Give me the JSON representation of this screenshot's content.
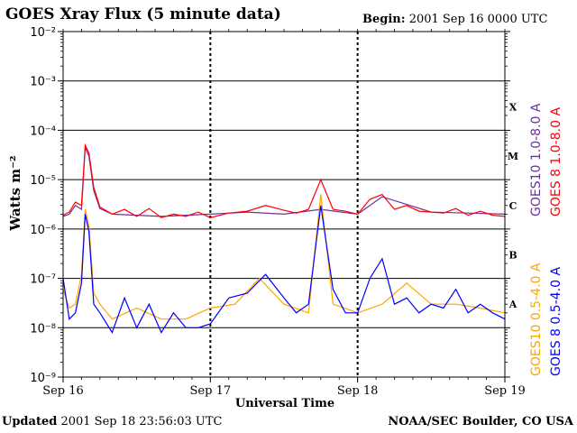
{
  "header": {
    "title": "GOES Xray Flux (5 minute data)",
    "begin_label": "Begin:",
    "begin_value": "2001 Sep 16 0000 UTC"
  },
  "footer": {
    "updated_label": "Updated",
    "updated_value": "2001 Sep 18 23:56:03 UTC",
    "org": "NOAA/SEC Boulder, CO USA"
  },
  "chart_data": {
    "type": "line",
    "title": "GOES Xray Flux (5 minute data)",
    "xlabel": "Universal Time",
    "ylabel": "Watts m⁻²",
    "x_unit": "hours since 2001 Sep 16 0000 UTC",
    "xlim": [
      0,
      72
    ],
    "y_scale": "log",
    "ylim": [
      1e-09,
      0.01
    ],
    "grid": true,
    "x_tick_labels": [
      "Sep 16",
      "Sep 17",
      "Sep 18",
      "Sep 19"
    ],
    "x_tick_values": [
      0,
      24,
      48,
      72
    ],
    "y_tick_labels": [
      "10⁻²",
      "10⁻³",
      "10⁻⁴",
      "10⁻⁵",
      "10⁻⁶",
      "10⁻⁷",
      "10⁻⁸",
      "10⁻⁹"
    ],
    "y_tick_values": [
      0.01,
      0.001,
      0.0001,
      1e-05,
      1e-06,
      1e-07,
      1e-08,
      1e-09
    ],
    "flare_classes": [
      {
        "label": "X",
        "value": 0.0003
      },
      {
        "label": "M",
        "value": 3e-05
      },
      {
        "label": "C",
        "value": 3e-06
      },
      {
        "label": "B",
        "value": 3e-07
      },
      {
        "label": "A",
        "value": 3e-08
      }
    ],
    "legend_position": "right",
    "series": [
      {
        "name": "GOES10 1.0-8.0 A",
        "color": "#7030a0",
        "x": [
          0,
          1,
          2,
          3,
          3.6,
          4.2,
          5,
          6,
          8,
          12,
          16,
          20,
          24,
          30,
          36,
          42,
          48,
          52,
          60,
          66,
          72
        ],
        "values": [
          1.8e-06,
          2e-06,
          3e-06,
          2.5e-06,
          4.5e-05,
          3e-05,
          6e-06,
          2.6e-06,
          2e-06,
          1.9e-06,
          1.8e-06,
          1.9e-06,
          2e-06,
          2.2e-06,
          2e-06,
          2.5e-06,
          2e-06,
          4.5e-06,
          2.2e-06,
          2.1e-06,
          2e-06
        ]
      },
      {
        "name": "GOES 8 1.0-8.0 A",
        "color": "#ff0000",
        "x": [
          0,
          1,
          2,
          3,
          3.6,
          4.2,
          5,
          6,
          8,
          10,
          12,
          14,
          16,
          18,
          20,
          22,
          24,
          27,
          30,
          33,
          36,
          38,
          40,
          42,
          44,
          46,
          48,
          50,
          52,
          54,
          56,
          58,
          60,
          62,
          64,
          66,
          68,
          70,
          72
        ],
        "values": [
          1.9e-06,
          2.2e-06,
          3.5e-06,
          3e-06,
          5e-05,
          3.5e-05,
          7e-06,
          2.8e-06,
          2e-06,
          2.5e-06,
          1.8e-06,
          2.6e-06,
          1.7e-06,
          2e-06,
          1.8e-06,
          2.2e-06,
          1.7e-06,
          2.1e-06,
          2.3e-06,
          3e-06,
          2.4e-06,
          2.1e-06,
          2.5e-06,
          1e-05,
          2.5e-06,
          2.3e-06,
          2e-06,
          4e-06,
          5e-06,
          2.5e-06,
          3e-06,
          2.3e-06,
          2.2e-06,
          2.1e-06,
          2.6e-06,
          1.9e-06,
          2.3e-06,
          1.9e-06,
          1.8e-06
        ]
      },
      {
        "name": "GOES10 0.5-4.0 A",
        "color": "#ffa500",
        "x": [
          0,
          1,
          2,
          3,
          3.6,
          4.2,
          5,
          6,
          8,
          12,
          16,
          20,
          24,
          28,
          32,
          36,
          40,
          42,
          44,
          48,
          52,
          56,
          60,
          64,
          68,
          72
        ],
        "values": [
          6e-08,
          2.5e-08,
          3e-08,
          1.2e-07,
          2.5e-06,
          1.2e-06,
          5e-08,
          3e-08,
          1.5e-08,
          2.5e-08,
          1.5e-08,
          1.5e-08,
          2.5e-08,
          3e-08,
          1e-07,
          3e-08,
          2e-08,
          5e-06,
          3e-08,
          2e-08,
          3e-08,
          8e-08,
          3e-08,
          3e-08,
          2.5e-08,
          2e-08
        ]
      },
      {
        "name": "GOES 8 0.5-4.0 A",
        "color": "#0000ff",
        "x": [
          0,
          1,
          2,
          3,
          3.6,
          4.2,
          5,
          6,
          8,
          10,
          12,
          14,
          16,
          18,
          20,
          22,
          24,
          27,
          30,
          33,
          36,
          38,
          40,
          42,
          44,
          46,
          48,
          50,
          52,
          54,
          56,
          58,
          60,
          62,
          64,
          66,
          68,
          70,
          72
        ],
        "values": [
          1e-07,
          1.5e-08,
          2e-08,
          8e-08,
          2e-06,
          9e-07,
          3e-08,
          2e-08,
          8e-09,
          4e-08,
          1e-08,
          3e-08,
          8e-09,
          2e-08,
          1e-08,
          1e-08,
          1.2e-08,
          4e-08,
          5e-08,
          1.2e-07,
          4e-08,
          2e-08,
          3e-08,
          3e-06,
          6e-08,
          2e-08,
          2e-08,
          1e-07,
          2.5e-07,
          3e-08,
          4e-08,
          2e-08,
          3e-08,
          2.5e-08,
          6e-08,
          2e-08,
          3e-08,
          2e-08,
          1.5e-08
        ]
      }
    ]
  }
}
